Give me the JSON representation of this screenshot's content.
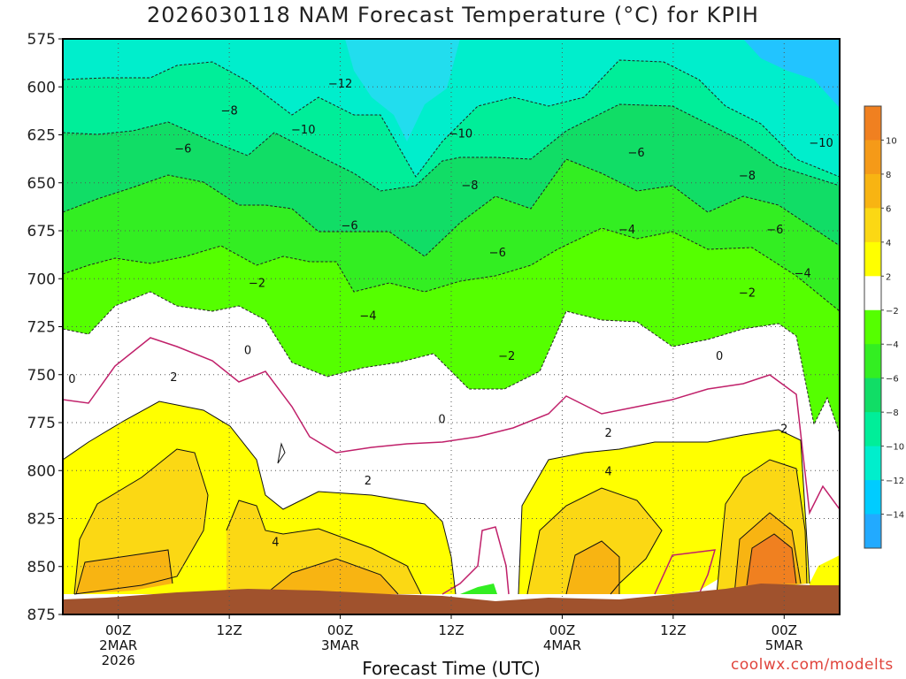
{
  "chart_data": {
    "type": "heatmap",
    "title": "2026030118 NAM Forecast Temperature (°C) for KPIH",
    "xlabel": "Forecast Time (UTC)",
    "ylabel": "",
    "y_axis": {
      "type": "pressure (hPa)",
      "ticks": [
        575,
        600,
        625,
        650,
        675,
        700,
        725,
        750,
        775,
        800,
        825,
        850,
        875
      ],
      "range": [
        875,
        575
      ],
      "inverted": true
    },
    "x_axis": {
      "ticks": [
        {
          "hour": 6,
          "label": [
            "00Z",
            "2MAR",
            "2026"
          ]
        },
        {
          "hour": 18,
          "label": [
            "12Z"
          ]
        },
        {
          "hour": 30,
          "label": [
            "00Z",
            "3MAR"
          ]
        },
        {
          "hour": 42,
          "label": [
            "12Z"
          ]
        },
        {
          "hour": 54,
          "label": [
            "00Z",
            "4MAR"
          ]
        },
        {
          "hour": 66,
          "label": [
            "12Z"
          ]
        },
        {
          "hour": 78,
          "label": [
            "00Z",
            "5MAR"
          ]
        }
      ],
      "range": [
        0,
        84
      ],
      "units": "forecast hour from 2026030118"
    },
    "grid": true,
    "colorbar": {
      "placement": "right",
      "ticks": [
        10,
        8,
        6,
        4,
        2,
        -2,
        -4,
        -6,
        -8,
        -10,
        -12,
        -14
      ],
      "bins": [
        {
          "range": [
            10,
            12
          ],
          "color": "#f08020"
        },
        {
          "range": [
            8,
            10
          ],
          "color": "#f59a18"
        },
        {
          "range": [
            6,
            8
          ],
          "color": "#f8b412"
        },
        {
          "range": [
            4,
            6
          ],
          "color": "#fbd814"
        },
        {
          "range": [
            2,
            4
          ],
          "color": "#ffff00"
        },
        {
          "range": [
            -2,
            2
          ],
          "color": "#ffffff"
        },
        {
          "range": [
            -4,
            -2
          ],
          "color": "#55ff00"
        },
        {
          "range": [
            -6,
            -4
          ],
          "color": "#33ee22"
        },
        {
          "range": [
            -8,
            -6
          ],
          "color": "#11dd66"
        },
        {
          "range": [
            -10,
            -8
          ],
          "color": "#00ee99"
        },
        {
          "range": [
            -12,
            -10
          ],
          "color": "#00eecc"
        },
        {
          "range": [
            -14,
            -12
          ],
          "color": "#00ccff"
        },
        {
          "range": [
            -16,
            -14
          ],
          "color": "#22aaff"
        }
      ]
    },
    "contour_labels": [
      {
        "value": "-12",
        "hour": 30,
        "pressure": 598
      },
      {
        "value": "-8",
        "hour": 18,
        "pressure": 612
      },
      {
        "value": "-10",
        "hour": 26,
        "pressure": 622
      },
      {
        "value": "-10",
        "hour": 43,
        "pressure": 624
      },
      {
        "value": "-6",
        "hour": 13,
        "pressure": 632
      },
      {
        "value": "-6",
        "hour": 62,
        "pressure": 634
      },
      {
        "value": "-10",
        "hour": 82,
        "pressure": 629
      },
      {
        "value": "-8",
        "hour": 44,
        "pressure": 651
      },
      {
        "value": "-8",
        "hour": 74,
        "pressure": 646
      },
      {
        "value": "-6",
        "hour": 31,
        "pressure": 672
      },
      {
        "value": "-4",
        "hour": 61,
        "pressure": 674
      },
      {
        "value": "-6",
        "hour": 77,
        "pressure": 674
      },
      {
        "value": "-6",
        "hour": 47,
        "pressure": 686
      },
      {
        "value": "-4",
        "hour": 80,
        "pressure": 697
      },
      {
        "value": "-2",
        "hour": 21,
        "pressure": 702
      },
      {
        "value": "-2",
        "hour": 74,
        "pressure": 707
      },
      {
        "value": "-4",
        "hour": 33,
        "pressure": 719
      },
      {
        "value": "0",
        "hour": 20,
        "pressure": 737
      },
      {
        "value": "-2",
        "hour": 48,
        "pressure": 740
      },
      {
        "value": "0",
        "hour": 71,
        "pressure": 740
      },
      {
        "value": "0",
        "hour": 1,
        "pressure": 752
      },
      {
        "value": "2",
        "hour": 12,
        "pressure": 751
      },
      {
        "value": "0",
        "hour": 41,
        "pressure": 773
      },
      {
        "value": "2",
        "hour": 78,
        "pressure": 778
      },
      {
        "value": "2",
        "hour": 59,
        "pressure": 780
      },
      {
        "value": "2",
        "hour": 33,
        "pressure": 805
      },
      {
        "value": "4",
        "hour": 59,
        "pressure": 800
      },
      {
        "value": "4",
        "hour": 23,
        "pressure": 837
      }
    ]
  },
  "credit": "coolwx.com/modelts"
}
